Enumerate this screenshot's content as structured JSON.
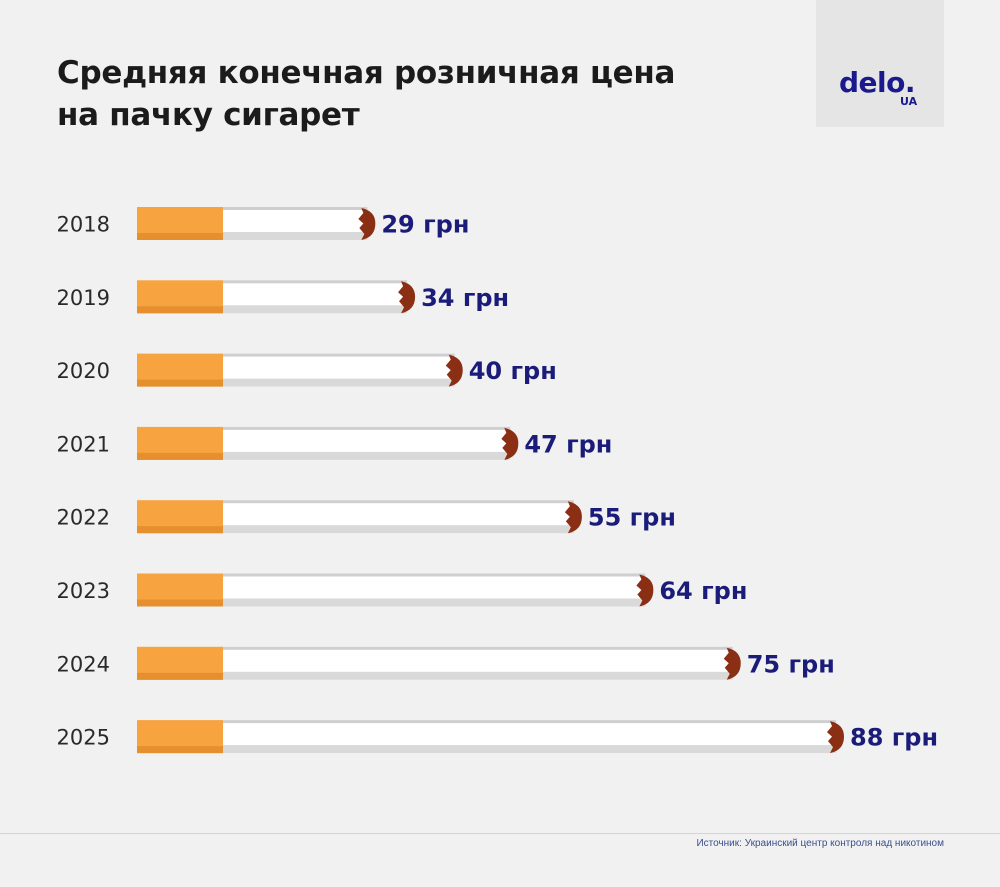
{
  "header": {
    "title_line1": "Средняя конечная розничная цена",
    "title_line2": "на пачку сигарет"
  },
  "logo": {
    "main": "delo.",
    "sub": "UA",
    "color": "#1a1a8c"
  },
  "source": "Источник: Украинский центр контроля над никотином",
  "colors": {
    "filter": "#f7a440",
    "filter_shadow": "#e58f2f",
    "paper": "#ffffff",
    "paper_shadow": "#d9d9d9",
    "ash": "#8b2f14",
    "value_text": "#1b1c7a",
    "year_text": "#2a2a2a"
  },
  "chart_data": {
    "type": "bar",
    "categories": [
      "2018",
      "2019",
      "2020",
      "2021",
      "2022",
      "2023",
      "2024",
      "2025"
    ],
    "values": [
      29,
      34,
      40,
      47,
      55,
      64,
      75,
      88
    ],
    "value_labels": [
      "29 грн",
      "34 грн",
      "40 грн",
      "47 грн",
      "55 грн",
      "64 грн",
      "75 грн",
      "88 грн"
    ],
    "orientation": "horizontal",
    "legend": "none",
    "grid": false
  }
}
